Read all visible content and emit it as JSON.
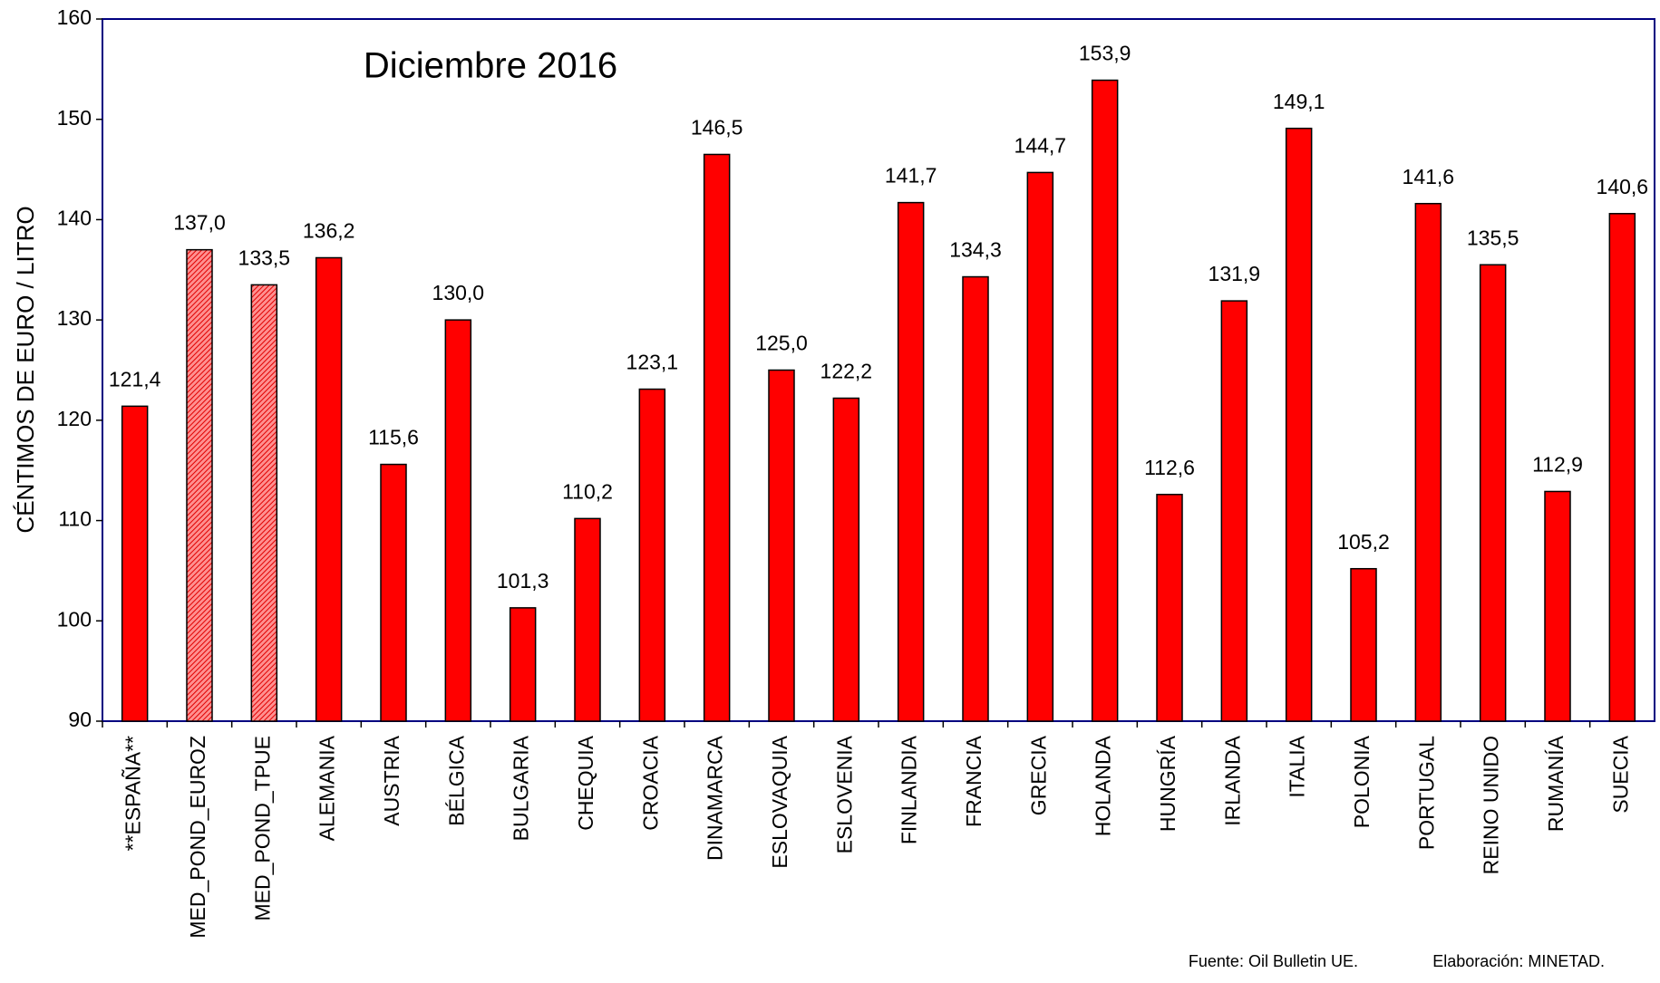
{
  "chart_data": {
    "type": "bar",
    "title": "Diciembre 2016",
    "y_label": "CÉNTIMOS DE EURO / LITRO",
    "annotations": [
      "Fuente: Oil Bulletin UE.",
      "Elaboración: MINETAD."
    ],
    "categories": [
      "**ESPAÑA**",
      "MED_POND_EUROZ",
      "MED_POND_TPUE",
      "ALEMANIA",
      "AUSTRIA",
      "BÉLGICA",
      "BULGARIA",
      "CHEQUIA",
      "CROACIA",
      "DINAMARCA",
      "ESLOVAQUIA",
      "ESLOVENIA",
      "FINLANDIA",
      "FRANCIA",
      "GRECIA",
      "HOLANDA",
      "HUNGRÍA",
      "IRLANDA",
      "ITALIA",
      "POLONIA",
      "PORTUGAL",
      "REINO UNIDO",
      "RUMANÍA",
      "SUECIA"
    ],
    "values": [
      121.4,
      137.0,
      133.5,
      136.2,
      115.6,
      130.0,
      101.3,
      110.2,
      123.1,
      146.5,
      125.0,
      122.2,
      141.7,
      134.3,
      144.7,
      153.9,
      112.6,
      131.9,
      149.1,
      105.2,
      141.6,
      135.5,
      112.9,
      140.6
    ],
    "value_labels": [
      "121,4",
      "137,0",
      "133,5",
      "136,2",
      "115,6",
      "130,0",
      "101,3",
      "110,2",
      "123,1",
      "146,5",
      "125,0",
      "122,2",
      "141,7",
      "134,3",
      "144,7",
      "153,9",
      "112,6",
      "131,9",
      "149,1",
      "105,2",
      "141,6",
      "135,5",
      "112,9",
      "140,6"
    ],
    "hatched": [
      false,
      true,
      true,
      false,
      false,
      false,
      false,
      false,
      false,
      false,
      false,
      false,
      false,
      false,
      false,
      false,
      false,
      false,
      false,
      false,
      false,
      false,
      false,
      false
    ],
    "color": "#ff0000",
    "ylim": [
      90,
      160
    ],
    "yticks": [
      90,
      100,
      110,
      120,
      130,
      140,
      150,
      160
    ],
    "grid": false
  }
}
